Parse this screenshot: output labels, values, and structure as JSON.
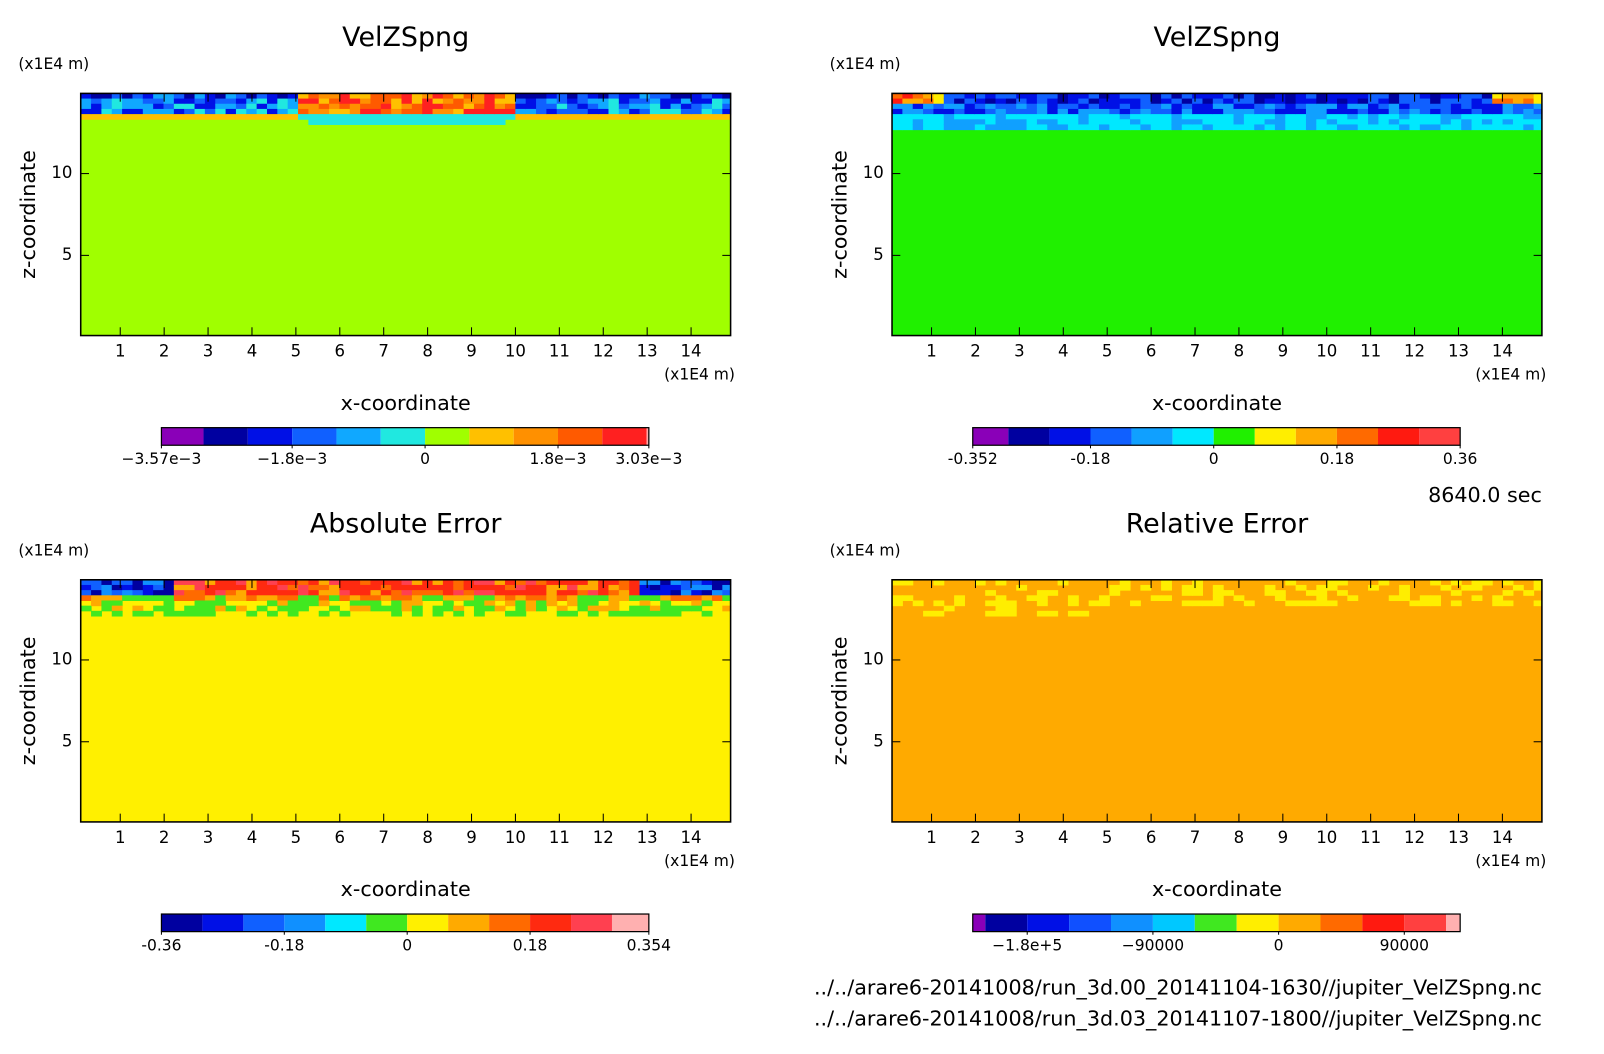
{
  "chart_data": [
    {
      "type": "contour",
      "title": "VelZSpng",
      "x_label": "x-coordinate",
      "y_label": "z-coordinate",
      "x_unit": "(x1E4 m)",
      "y_unit": "(x1E4 m)",
      "xlim": [
        0.1,
        14.9
      ],
      "ylim": [
        0.1,
        14.9
      ],
      "xticks": [
        1,
        2,
        3,
        4,
        5,
        6,
        7,
        8,
        9,
        10,
        11,
        12,
        13,
        14
      ],
      "yticks": [
        5,
        10
      ],
      "colorbar": {
        "clim": [
          -0.00357,
          0.00303
        ],
        "levels": [
          -0.003,
          -0.0024,
          -0.0018,
          -0.0012,
          -0.0006,
          0,
          0.0006,
          0.0012,
          0.0018,
          0.0024,
          0.003
        ],
        "colors": [
          "#8a00b8",
          "#0000a0",
          "#0010e6",
          "#1060ff",
          "#10a8ff",
          "#20e8e0",
          "#a0ff00",
          "#ffc000",
          "#ff9000",
          "#ff5a00",
          "#ff2020",
          "#ffaaaa"
        ],
        "ticks": [
          {
            "value": -0.00357,
            "label": "−3.57e−3"
          },
          {
            "value": -0.0018,
            "label": "−1.8e−3"
          },
          0,
          {
            "value": 0.0018,
            "label": "1.8e−3"
          },
          {
            "value": 0.00303,
            "label": "3.03e−3"
          }
        ]
      }
    },
    {
      "type": "contour",
      "title": "VelZSpng",
      "x_label": "x-coordinate",
      "y_label": "z-coordinate",
      "x_unit": "(x1E4 m)",
      "y_unit": "(x1E4 m)",
      "xlim": [
        0.1,
        14.9
      ],
      "ylim": [
        0.1,
        14.9
      ],
      "xticks": [
        1,
        2,
        3,
        4,
        5,
        6,
        7,
        8,
        9,
        10,
        11,
        12,
        13,
        14
      ],
      "yticks": [
        5,
        10
      ],
      "colorbar": {
        "clim": [
          -0.352,
          0.36
        ],
        "levels": [
          -0.3,
          -0.24,
          -0.18,
          -0.12,
          -0.06,
          0,
          0.06,
          0.12,
          0.18,
          0.24,
          0.3
        ],
        "colors": [
          "#8a00b8",
          "#0000a0",
          "#0010e6",
          "#1060ff",
          "#10a0ff",
          "#00e8ff",
          "#20f000",
          "#ffee00",
          "#ffaa00",
          "#ff6a00",
          "#ff1a10",
          "#ff4040"
        ],
        "ticks": [
          -0.352,
          -0.18,
          0,
          0.18,
          0.36
        ]
      }
    },
    {
      "type": "contour",
      "title": "Absolute Error",
      "x_label": "x-coordinate",
      "y_label": "z-coordinate",
      "x_unit": "(x1E4 m)",
      "y_unit": "(x1E4 m)",
      "xlim": [
        0.1,
        14.9
      ],
      "ylim": [
        0.1,
        14.9
      ],
      "xticks": [
        1,
        2,
        3,
        4,
        5,
        6,
        7,
        8,
        9,
        10,
        11,
        12,
        13,
        14
      ],
      "yticks": [
        5,
        10
      ],
      "colorbar": {
        "clim": [
          -0.36,
          0.354
        ],
        "levels": [
          -0.3,
          -0.24,
          -0.18,
          -0.12,
          -0.06,
          0,
          0.06,
          0.12,
          0.18,
          0.24,
          0.3
        ],
        "colors": [
          "#0000a0",
          "#0010e6",
          "#1060ff",
          "#1090ff",
          "#00e8ff",
          "#40e820",
          "#fff000",
          "#ffaa00",
          "#ff6a00",
          "#ff2a10",
          "#ff4050",
          "#ffb0b0"
        ],
        "ticks": [
          -0.36,
          -0.18,
          0,
          0.18,
          0.354
        ]
      }
    },
    {
      "type": "contour",
      "title": "Relative Error",
      "x_label": "x-coordinate",
      "y_label": "z-coordinate",
      "x_unit": "(x1E4 m)",
      "y_unit": "(x1E4 m)",
      "xlim": [
        0.1,
        14.9
      ],
      "ylim": [
        0.1,
        14.9
      ],
      "xticks": [
        1,
        2,
        3,
        4,
        5,
        6,
        7,
        8,
        9,
        10,
        11,
        12,
        13,
        14
      ],
      "yticks": [
        5,
        10
      ],
      "colorbar": {
        "clim": [
          -219000,
          130000
        ],
        "levels": [
          -210000,
          -180000,
          -150000,
          -120000,
          -90000,
          -60000,
          -30000,
          0,
          30000,
          60000,
          90000,
          120000
        ],
        "colors": [
          "#8a00b8",
          "#0000a0",
          "#0010e6",
          "#1050ff",
          "#1090ff",
          "#00c8ff",
          "#40e820",
          "#ffee00",
          "#ffaa00",
          "#ff6a00",
          "#ff1a10",
          "#ff4040",
          "#ffb0b0"
        ],
        "ticks": [
          {
            "value": -180000,
            "label": "−1.8e+5"
          },
          {
            "value": -90000,
            "label": "−90000"
          },
          0,
          90000
        ]
      }
    }
  ],
  "annotations": {
    "time": "8640.0 sec",
    "files": [
      "../../arare6-20141008/run_3d.00_20141104-1630//jupiter_VelZSpng.nc",
      "../../arare6-20141008/run_3d.03_20141107-1800//jupiter_VelZSpng.nc"
    ]
  }
}
